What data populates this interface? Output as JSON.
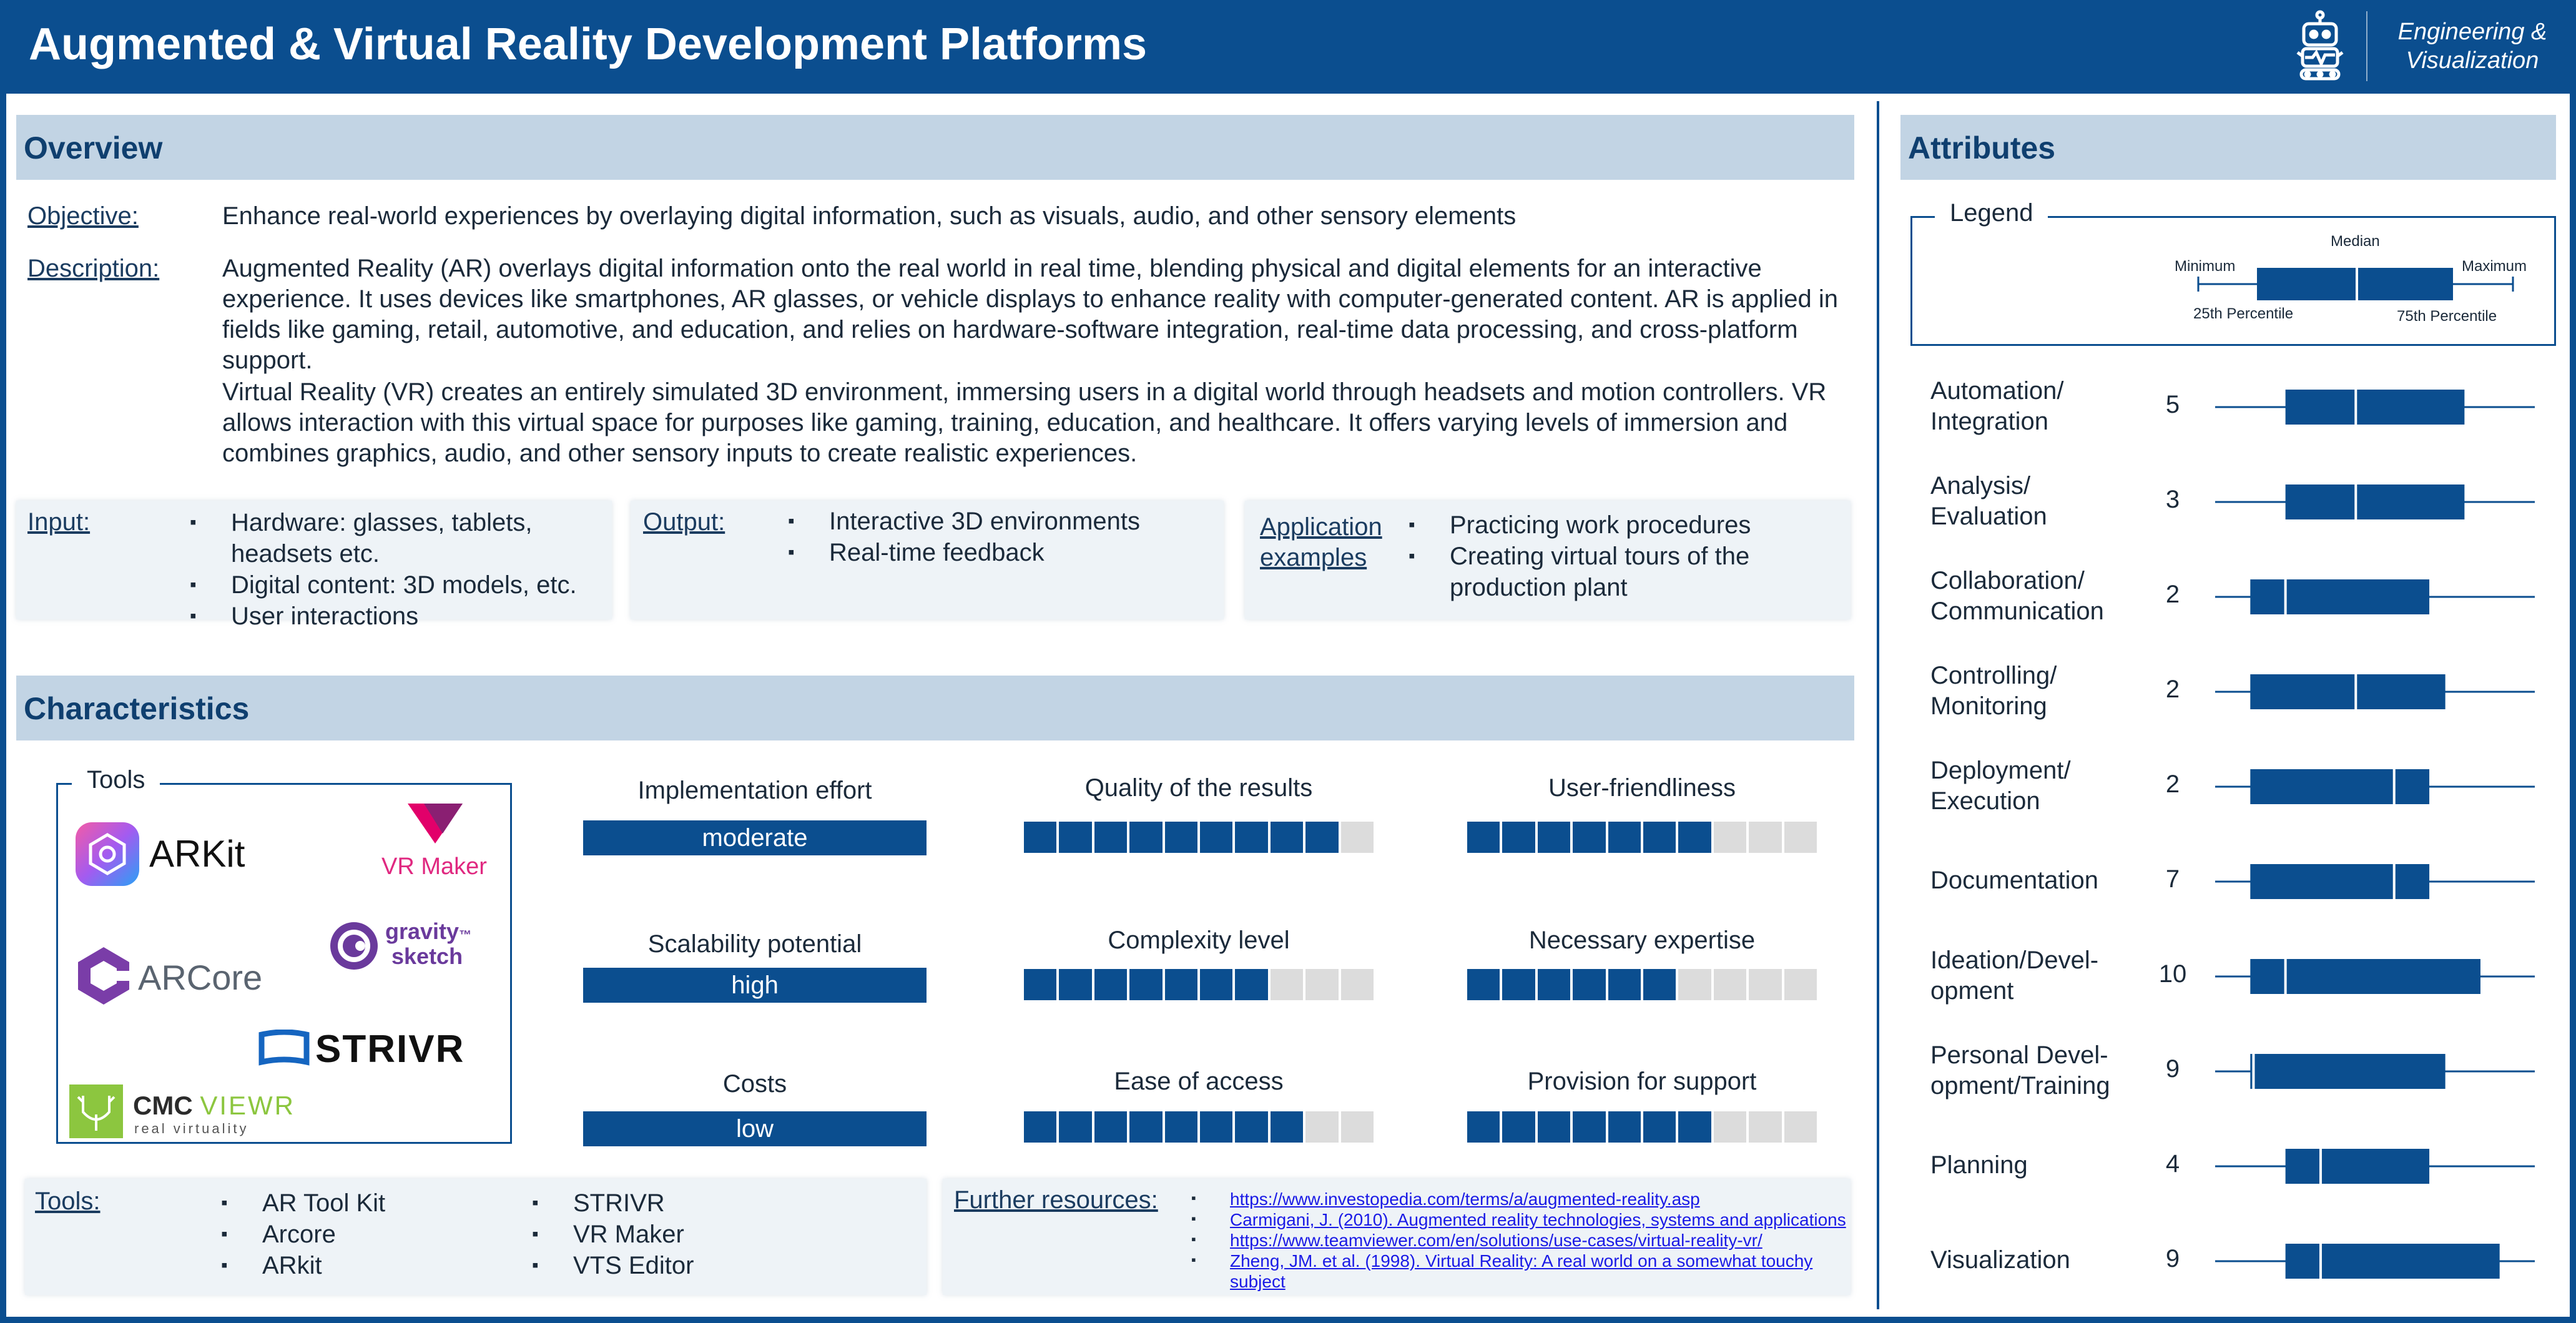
{
  "header": {
    "title": "Augmented & Virtual Reality Development Platforms",
    "domain_line1": "Engineering &",
    "domain_line2": "Visualization",
    "icon": "robot-icon"
  },
  "overview": {
    "heading": "Overview",
    "objective_label": "Objective:",
    "objective": "Enhance real-world experiences by overlaying digital information, such as visuals, audio, and other sensory elements",
    "description_label": "Description:",
    "description_ar": "Augmented Reality (AR) overlays digital information onto the real world in real time, blending physical and digital elements for an interactive experience. It uses devices like smartphones, AR glasses, or vehicle displays to enhance reality with computer-generated content. AR is applied in fields like gaming, retail, automotive, and education, and relies on hardware-software integration, real-time data processing, and cross-platform support.",
    "description_vr": "Virtual Reality (VR) creates an entirely simulated 3D environment, immersing users in a digital world through headsets and motion controllers. VR allows interaction with this virtual space for purposes like gaming, training, education, and healthcare. It offers varying levels of immersion and combines graphics, audio, and other sensory inputs to create realistic experiences.",
    "input_label": "Input:",
    "input_items": [
      "Hardware: glasses, tablets, headsets etc.",
      "Digital content: 3D models, etc.",
      "User interactions"
    ],
    "output_label": "Output:",
    "output_items": [
      "Interactive 3D environments",
      "Real-time feedback"
    ],
    "app_label_1": "Application",
    "app_label_2": "examples",
    "app_items": [
      "Practicing work procedures",
      "Creating virtual tours of the production plant"
    ]
  },
  "characteristics": {
    "heading": "Characteristics",
    "tools_box_title": "Tools",
    "logos": {
      "arkit": "ARKit",
      "vrmaker": "VR Maker",
      "gravity_1": "gravity",
      "gravity_2": "sketch",
      "gravity_tm": "™",
      "arcore": "ARCore",
      "strivr": "STRIVR",
      "cmc_1": "CMC ",
      "cmc_2": "VIEWR",
      "cmc_3": "real virtuality"
    },
    "implementation_effort": {
      "title": "Implementation effort",
      "value": "moderate"
    },
    "scalability": {
      "title": "Scalability potential",
      "value": "high"
    },
    "costs": {
      "title": "Costs",
      "value": "low"
    },
    "quality": {
      "title": "Quality of the results",
      "level": 9,
      "max": 10
    },
    "complexity": {
      "title": "Complexity level",
      "level": 7,
      "max": 10
    },
    "ease_access": {
      "title": "Ease of access",
      "level": 8,
      "max": 10
    },
    "user_friendly": {
      "title": "User-friendliness",
      "level": 7,
      "max": 10
    },
    "expertise": {
      "title": "Necessary expertise",
      "level": 6,
      "max": 10
    },
    "support": {
      "title": "Provision for support",
      "level": 7,
      "max": 10
    },
    "tools_label": "Tools:",
    "tools_col1": [
      "AR Tool Kit",
      "Arcore",
      "ARkit"
    ],
    "tools_col2": [
      "STRIVR",
      "VR Maker",
      "VTS Editor"
    ],
    "resources_label": "Further resources:",
    "resources": [
      "https://www.investopedia.com/terms/a/augmented-reality.asp",
      "Carmigani, J. (2010). Augmented reality technologies, systems and applications",
      "https://www.teamviewer.com/en/solutions/use-cases/virtual-reality-vr/",
      "Zheng, JM. et al. (1998). Virtual Reality: A real world on a somewhat touchy subject"
    ]
  },
  "attributes": {
    "heading": "Attributes",
    "legend_title": "Legend",
    "legend_labels": {
      "median": "Median",
      "minimum": "Minimum",
      "maximum": "Maximum",
      "p25": "25th Percentile",
      "p75": "75th Percentile"
    },
    "colors": {
      "accent": "#0b4e8f",
      "section": "#c2d4e4"
    },
    "chart_data": {
      "type": "boxplot",
      "x": [
        0,
        1
      ],
      "series": [
        {
          "label_1": "Automation/",
          "label_2": "Integration",
          "count": "5",
          "min": 0.0,
          "q1": 0.22,
          "median": 0.44,
          "q3": 0.78,
          "max": 1.0
        },
        {
          "label_1": "Analysis/",
          "label_2": "Evaluation",
          "count": "3",
          "min": 0.0,
          "q1": 0.22,
          "median": 0.44,
          "q3": 0.78,
          "max": 1.0
        },
        {
          "label_1": "Collaboration/",
          "label_2": "Communication",
          "count": "2",
          "min": 0.0,
          "q1": 0.11,
          "median": 0.22,
          "q3": 0.67,
          "max": 1.0
        },
        {
          "label_1": "Controlling/",
          "label_2": "Monitoring",
          "count": "2",
          "min": 0.0,
          "q1": 0.11,
          "median": 0.44,
          "q3": 0.72,
          "max": 1.0
        },
        {
          "label_1": "Deployment/",
          "label_2": "Execution",
          "count": "2",
          "min": 0.0,
          "q1": 0.11,
          "median": 0.56,
          "q3": 0.67,
          "max": 1.0
        },
        {
          "label_1": "Documentation",
          "label_2": "",
          "count": "7",
          "min": 0.0,
          "q1": 0.11,
          "median": 0.56,
          "q3": 0.67,
          "max": 1.0
        },
        {
          "label_1": "Ideation/Devel-",
          "label_2": "opment",
          "count": "10",
          "min": 0.0,
          "q1": 0.11,
          "median": 0.22,
          "q3": 0.83,
          "max": 1.0
        },
        {
          "label_1": "Personal Devel-",
          "label_2": "opment/Training",
          "count": "9",
          "min": 0.0,
          "q1": 0.11,
          "median": 0.12,
          "q3": 0.72,
          "max": 1.0
        },
        {
          "label_1": "Planning",
          "label_2": "",
          "count": "4",
          "min": 0.0,
          "q1": 0.22,
          "median": 0.33,
          "q3": 0.67,
          "max": 1.0
        },
        {
          "label_1": "Visualization",
          "label_2": "",
          "count": "9",
          "min": 0.0,
          "q1": 0.22,
          "median": 0.33,
          "q3": 0.89,
          "max": 1.0
        }
      ]
    }
  }
}
